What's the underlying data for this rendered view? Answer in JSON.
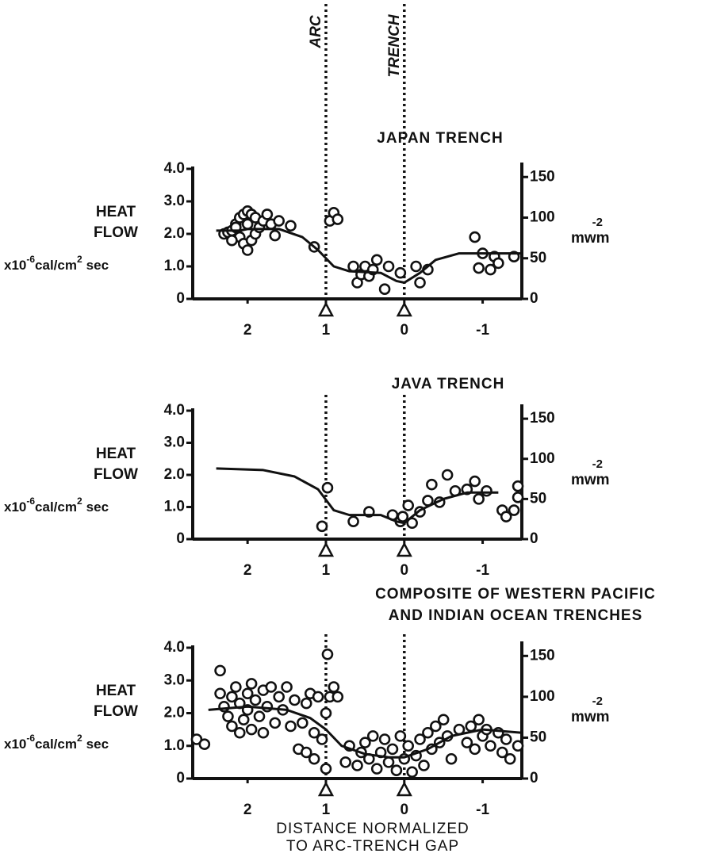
{
  "chart_data": [
    {
      "type": "scatter",
      "title": [
        "JAPAN TRENCH"
      ],
      "xlim": [
        2.7,
        -1.5
      ],
      "xticks": [
        2,
        1,
        0,
        -1
      ],
      "ylim": [
        0,
        4
      ],
      "yticks": [
        0,
        {
          "value": 1,
          "label": "1.0"
        },
        {
          "value": 2,
          "label": "2.0"
        },
        {
          "value": 3,
          "label": "3.0"
        },
        {
          "value": 4,
          "label": "4.0"
        }
      ],
      "y2lim": [
        0,
        160
      ],
      "y2ticks": [
        0,
        50,
        100,
        150
      ],
      "ylabel": [
        "HEAT",
        "FLOW"
      ],
      "yunit": [
        "x10",
        "-6",
        "cal/cm",
        "2",
        "sec"
      ],
      "y2unit": [
        "mwm",
        "-2"
      ],
      "vlines": [
        {
          "value": 1,
          "label": "ARC"
        },
        {
          "value": 0,
          "label": "TRENCH"
        }
      ],
      "color": "#111111",
      "series": [
        {
          "style": "points",
          "x": [
            2.3,
            2.25,
            2.2,
            2.15,
            2.1,
            2.05,
            2.0,
            1.95,
            1.9,
            2.15,
            2.1,
            2.05,
            2.0,
            1.95,
            1.9,
            1.85,
            2.2,
            2.0,
            1.8,
            1.75,
            1.7,
            1.65,
            1.6,
            1.45,
            1.15,
            0.95,
            0.9,
            0.85,
            0.65,
            0.6,
            0.55,
            0.5,
            0.45,
            0.4,
            0.35,
            0.25,
            0.2,
            0.05,
            -0.15,
            -0.2,
            -0.3,
            -0.9,
            -0.95,
            -1.0,
            -1.1,
            -1.15,
            -1.2,
            -1.4
          ],
          "values": [
            2.0,
            2.05,
            2.1,
            2.3,
            2.5,
            2.6,
            2.7,
            2.6,
            2.5,
            2.2,
            1.9,
            1.7,
            1.5,
            1.8,
            2.0,
            2.2,
            1.8,
            2.3,
            2.4,
            2.6,
            2.3,
            1.95,
            2.4,
            2.25,
            1.6,
            2.4,
            2.65,
            2.45,
            1.0,
            0.5,
            0.75,
            1.0,
            0.7,
            0.9,
            1.2,
            0.3,
            1.0,
            0.8,
            1.0,
            0.5,
            0.9,
            1.9,
            0.95,
            1.4,
            0.9,
            1.3,
            1.1,
            1.3
          ]
        },
        {
          "style": "line",
          "x": [
            2.4,
            2.1,
            2.0,
            1.6,
            1.3,
            1.1,
            0.9,
            0.7,
            0.3,
            0.1,
            0.0,
            -0.2,
            -0.4,
            -0.7,
            -1.5
          ],
          "values": [
            2.1,
            2.1,
            2.15,
            2.15,
            1.9,
            1.5,
            1.0,
            0.85,
            0.8,
            0.55,
            0.5,
            0.8,
            1.2,
            1.4,
            1.4
          ]
        }
      ]
    },
    {
      "type": "scatter",
      "title": [
        "JAVA TRENCH"
      ],
      "xlim": [
        2.7,
        -1.5
      ],
      "xticks": [
        2,
        1,
        0,
        -1
      ],
      "ylim": [
        0,
        4
      ],
      "yticks": [
        0,
        {
          "value": 1,
          "label": "1.0"
        },
        {
          "value": 2,
          "label": "2.0"
        },
        {
          "value": 3,
          "label": "3.0"
        },
        {
          "value": 4,
          "label": "4.0"
        }
      ],
      "y2lim": [
        0,
        160
      ],
      "y2ticks": [
        0,
        50,
        100,
        150
      ],
      "ylabel": [
        "HEAT",
        "FLOW"
      ],
      "yunit": [
        "x10",
        "-6",
        "cal/cm",
        "2",
        "sec"
      ],
      "y2unit": [
        "mwm",
        "-2"
      ],
      "vlines": [
        1,
        0
      ],
      "color": "#111111",
      "series": [
        {
          "style": "points",
          "x": [
            1.05,
            0.98,
            0.65,
            0.45,
            0.15,
            0.05,
            0.02,
            -0.05,
            -0.1,
            -0.2,
            -0.3,
            -0.35,
            -0.45,
            -0.55,
            -0.65,
            -0.8,
            -0.9,
            -0.95,
            -1.05,
            -1.25,
            -1.3,
            -1.4,
            -1.45,
            -1.45
          ],
          "values": [
            0.4,
            1.6,
            0.55,
            0.85,
            0.75,
            0.55,
            0.7,
            1.05,
            0.5,
            0.85,
            1.2,
            1.7,
            1.15,
            2.0,
            1.5,
            1.55,
            1.8,
            1.25,
            1.5,
            0.9,
            0.7,
            0.9,
            1.3,
            1.65
          ]
        },
        {
          "style": "line",
          "x": [
            2.4,
            1.8,
            1.4,
            1.1,
            0.9,
            0.7,
            0.3,
            0.1,
            0.0,
            -0.2,
            -0.5,
            -0.8,
            -1.2
          ],
          "values": [
            2.2,
            2.15,
            1.95,
            1.55,
            0.9,
            0.75,
            0.75,
            0.55,
            0.5,
            0.9,
            1.25,
            1.45,
            1.45
          ]
        }
      ]
    },
    {
      "type": "scatter",
      "title": [
        "COMPOSITE OF WESTERN PACIFIC",
        "AND INDIAN OCEAN TRENCHES"
      ],
      "xlim": [
        2.7,
        -1.5
      ],
      "xticks": [
        2,
        1,
        0,
        -1
      ],
      "ylim": [
        0,
        4
      ],
      "yticks": [
        0,
        {
          "value": 1,
          "label": "1.0"
        },
        {
          "value": 2,
          "label": "2.0"
        },
        {
          "value": 3,
          "label": "3.0"
        },
        {
          "value": 4,
          "label": "4.0"
        }
      ],
      "y2lim": [
        0,
        160
      ],
      "y2ticks": [
        0,
        50,
        100,
        150
      ],
      "ylabel": [
        "HEAT",
        "FLOW"
      ],
      "yunit": [
        "x10",
        "-6",
        "cal/cm",
        "2",
        "sec"
      ],
      "y2unit": [
        "mwm",
        "-2"
      ],
      "vlines": [
        1,
        0
      ],
      "xlabel": [
        "DISTANCE NORMALIZED",
        "TO ARC-TRENCH GAP"
      ],
      "color": "#111111",
      "series": [
        {
          "style": "points",
          "x": [
            2.65,
            2.55,
            2.35,
            2.35,
            2.3,
            2.25,
            2.2,
            2.2,
            2.15,
            2.1,
            2.1,
            2.05,
            2.0,
            2.0,
            1.95,
            1.95,
            1.9,
            1.85,
            1.8,
            1.8,
            1.75,
            1.7,
            1.65,
            1.6,
            1.55,
            1.5,
            1.45,
            1.4,
            1.35,
            1.3,
            1.25,
            1.25,
            1.2,
            1.15,
            1.15,
            1.1,
            1.05,
            1.0,
            1.0,
            0.98,
            0.95,
            0.9,
            0.85,
            0.75,
            0.7,
            0.6,
            0.55,
            0.5,
            0.45,
            0.4,
            0.35,
            0.3,
            0.25,
            0.2,
            0.15,
            0.1,
            0.05,
            0.0,
            -0.05,
            -0.1,
            -0.15,
            -0.2,
            -0.25,
            -0.3,
            -0.35,
            -0.4,
            -0.45,
            -0.5,
            -0.55,
            -0.6,
            -0.7,
            -0.8,
            -0.85,
            -0.9,
            -0.95,
            -1.0,
            -1.05,
            -1.1,
            -1.2,
            -1.25,
            -1.3,
            -1.35,
            -1.45
          ],
          "values": [
            1.2,
            1.05,
            2.6,
            3.3,
            2.2,
            1.9,
            2.5,
            1.6,
            2.8,
            2.3,
            1.4,
            1.8,
            2.6,
            2.1,
            1.5,
            2.9,
            2.4,
            1.9,
            2.7,
            1.4,
            2.2,
            2.8,
            1.7,
            2.5,
            2.1,
            2.8,
            1.6,
            2.4,
            0.9,
            1.7,
            0.8,
            2.3,
            2.6,
            0.6,
            1.4,
            2.5,
            1.2,
            2.0,
            0.3,
            3.8,
            2.5,
            2.8,
            2.5,
            0.5,
            1.0,
            0.4,
            0.8,
            1.1,
            0.6,
            1.3,
            0.3,
            0.8,
            1.2,
            0.5,
            0.9,
            0.25,
            1.3,
            0.6,
            1.0,
            0.2,
            0.7,
            1.2,
            0.4,
            1.4,
            0.9,
            1.6,
            1.1,
            1.8,
            1.3,
            0.6,
            1.5,
            1.1,
            1.6,
            0.9,
            1.8,
            1.3,
            1.5,
            1.0,
            1.4,
            0.8,
            1.2,
            0.6,
            1.0
          ]
        },
        {
          "style": "line",
          "x": [
            2.5,
            2.0,
            1.5,
            1.2,
            1.0,
            0.8,
            0.5,
            0.2,
            0.0,
            -0.3,
            -0.6,
            -1.0,
            -1.5
          ],
          "values": [
            2.1,
            2.2,
            2.1,
            1.85,
            1.5,
            1.0,
            0.75,
            0.65,
            0.65,
            0.9,
            1.3,
            1.5,
            1.4
          ]
        }
      ]
    }
  ]
}
